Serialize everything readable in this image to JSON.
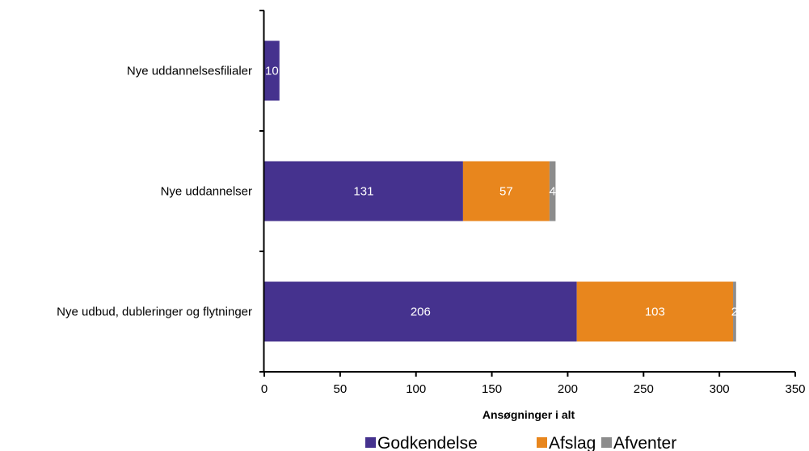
{
  "chart_data": {
    "type": "bar",
    "orientation": "horizontal",
    "stacked": true,
    "categories": [
      "Nye uddannelsesfilialer",
      "Nye uddannelser",
      "Nye udbud, dubleringer og flytninger"
    ],
    "series": [
      {
        "name": "Godkendelse",
        "values": [
          10,
          131,
          206
        ],
        "color": "#45328e"
      },
      {
        "name": "Afslag",
        "values": [
          0,
          57,
          103
        ],
        "color": "#e8861d"
      },
      {
        "name": "Afventer",
        "values": [
          0,
          4,
          2
        ],
        "color": "#8c8c8c"
      }
    ],
    "xlabel": "Ansøgninger i alt",
    "ylabel": "",
    "xlim": [
      0,
      350
    ],
    "xticks": [
      0,
      50,
      100,
      150,
      200,
      250,
      300,
      350
    ],
    "grid": false,
    "legend": "bottom"
  }
}
